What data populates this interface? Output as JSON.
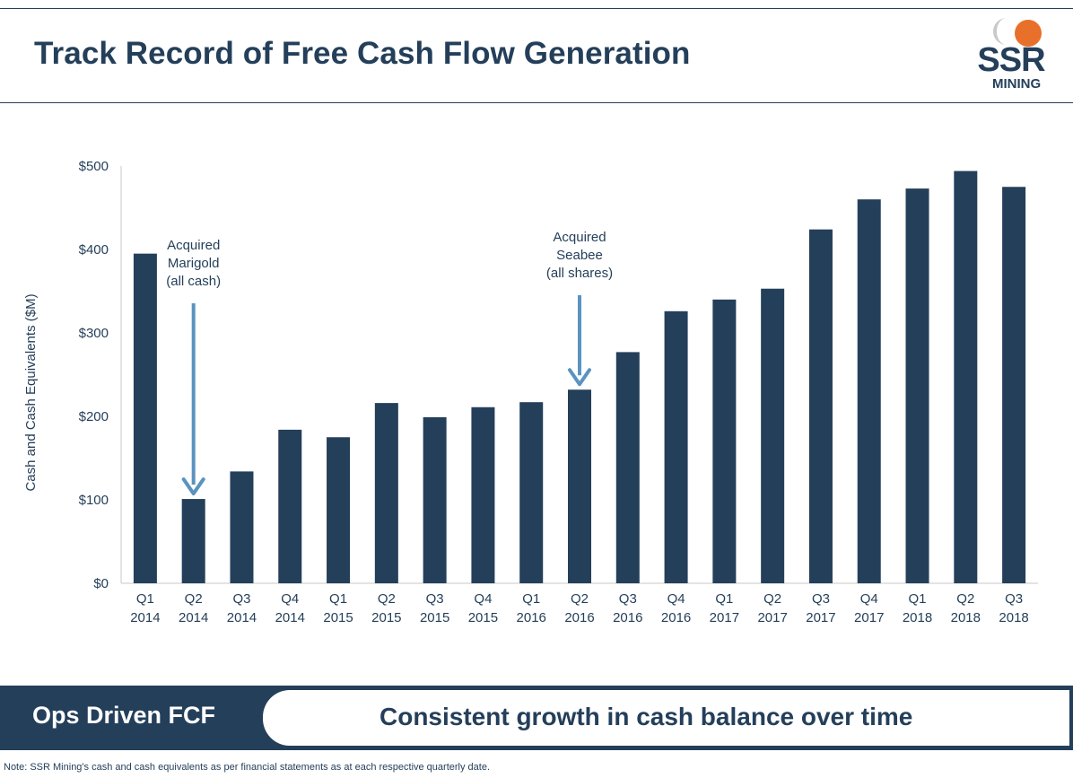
{
  "header": {
    "title": "Track Record of Free Cash Flow Generation"
  },
  "logo": {
    "text": "SSR",
    "subtext": "MINING",
    "accent": "#e8702a",
    "mark_gray": "#c9c9c9"
  },
  "colors": {
    "bar": "#243f5a",
    "arrow": "#5b93c0",
    "text": "#243f5a"
  },
  "chart_data": {
    "type": "bar",
    "title": "",
    "xlabel": "",
    "ylabel": "Cash and Cash Equivalents ($M)",
    "ylim": [
      0,
      500
    ],
    "yticks": [
      0,
      100,
      200,
      300,
      400,
      500
    ],
    "ytick_labels": [
      "$0",
      "$100",
      "$200",
      "$300",
      "$400",
      "$500"
    ],
    "grid": false,
    "categories": [
      [
        "Q1",
        "2014"
      ],
      [
        "Q2",
        "2014"
      ],
      [
        "Q3",
        "2014"
      ],
      [
        "Q4",
        "2014"
      ],
      [
        "Q1",
        "2015"
      ],
      [
        "Q2",
        "2015"
      ],
      [
        "Q3",
        "2015"
      ],
      [
        "Q4",
        "2015"
      ],
      [
        "Q1",
        "2016"
      ],
      [
        "Q2",
        "2016"
      ],
      [
        "Q3",
        "2016"
      ],
      [
        "Q4",
        "2016"
      ],
      [
        "Q1",
        "2017"
      ],
      [
        "Q2",
        "2017"
      ],
      [
        "Q3",
        "2017"
      ],
      [
        "Q4",
        "2017"
      ],
      [
        "Q1",
        "2018"
      ],
      [
        "Q2",
        "2018"
      ],
      [
        "Q3",
        "2018"
      ]
    ],
    "values": [
      395,
      101,
      134,
      184,
      175,
      216,
      199,
      211,
      217,
      232,
      277,
      326,
      340,
      353,
      424,
      460,
      473,
      494,
      475
    ],
    "annotations": [
      {
        "category_index": 1,
        "lines": [
          "Acquired",
          "Marigold",
          "(all cash)"
        ]
      },
      {
        "category_index": 9,
        "lines": [
          "Acquired",
          "Seabee",
          "(all shares)"
        ]
      }
    ]
  },
  "banner": {
    "left": "Ops Driven FCF",
    "right": "Consistent growth in cash balance over time"
  },
  "footnote": "Note: SSR Mining's cash and cash equivalents as per financial statements as at each respective quarterly date."
}
